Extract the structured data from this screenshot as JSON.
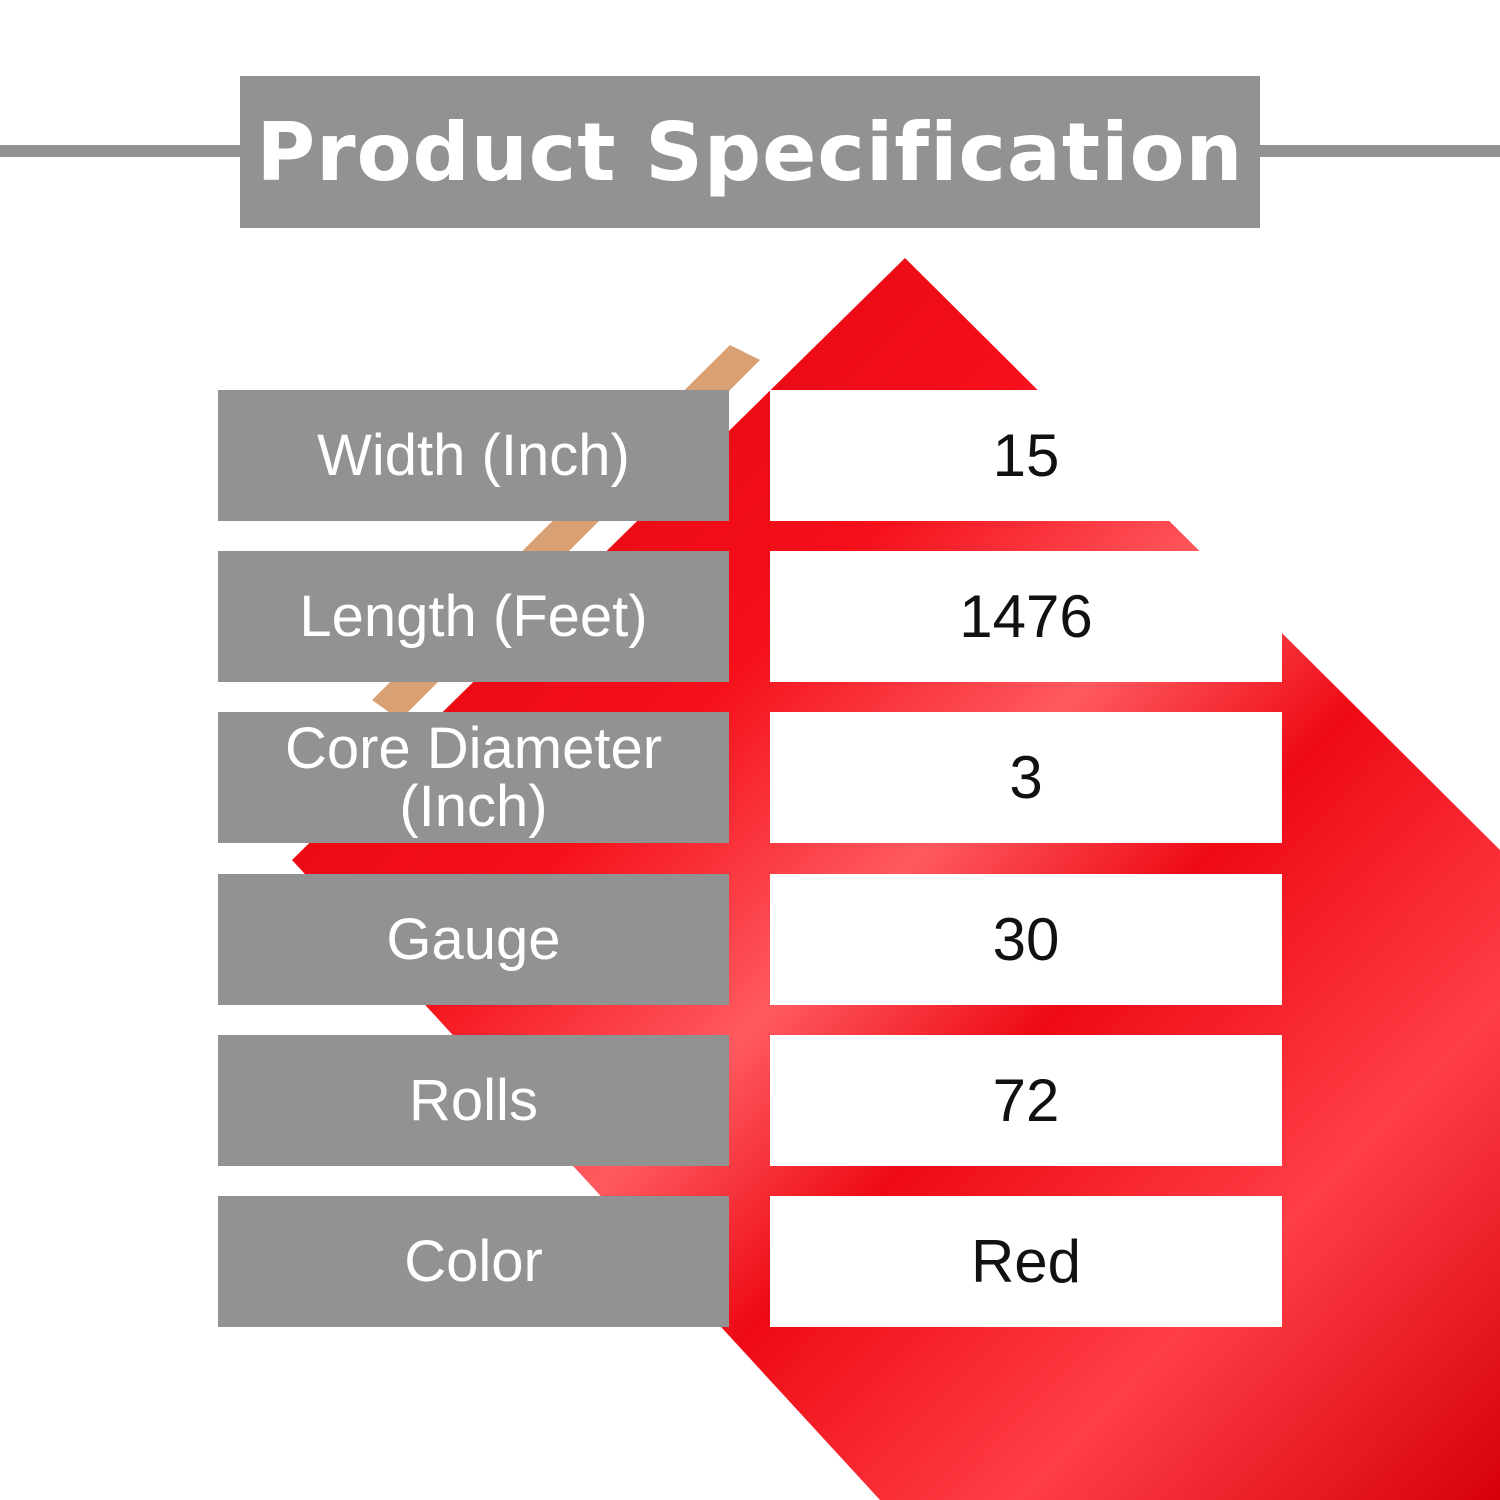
{
  "title": "Product Specification",
  "colors": {
    "panel": "#929292",
    "roll": "#e8000b",
    "core": "#d9a074"
  },
  "product_image": "red-stretch-film-roll",
  "specs": [
    {
      "label": "Width (Inch)",
      "value": "15"
    },
    {
      "label": "Length (Feet)",
      "value": "1476"
    },
    {
      "label": "Core Diameter (Inch)",
      "value": "3"
    },
    {
      "label": "Gauge",
      "value": "30"
    },
    {
      "label": "Rolls",
      "value": "72"
    },
    {
      "label": "Color",
      "value": "Red"
    }
  ]
}
